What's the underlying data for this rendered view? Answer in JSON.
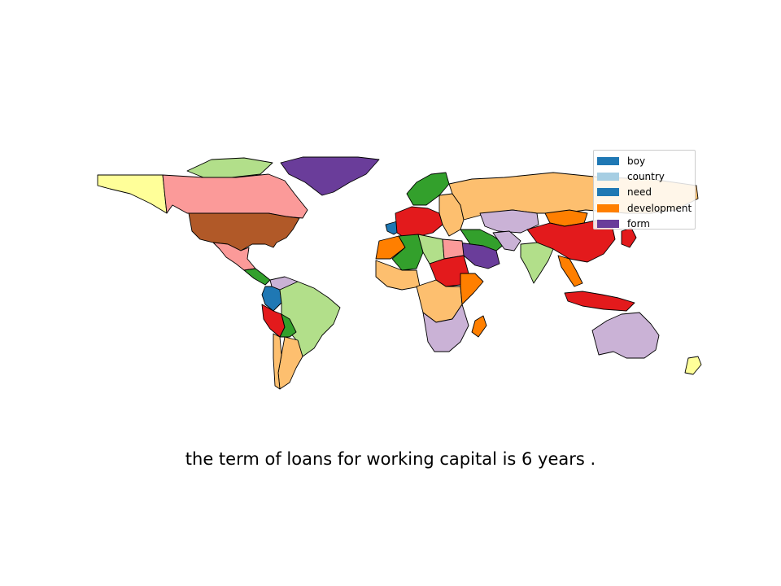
{
  "legend": {
    "items": [
      {
        "label": "boy",
        "color": "#1f78b4"
      },
      {
        "label": "country",
        "color": "#a6cee3"
      },
      {
        "label": "need",
        "color": "#1f78b4"
      },
      {
        "label": "development",
        "color": "#ff7f00"
      },
      {
        "label": "form",
        "color": "#6a3d9a"
      }
    ]
  },
  "caption": "the term of loans for working capital is 6 years .",
  "palette": {
    "light_blue": "#a6cee3",
    "blue": "#1f78b4",
    "light_green": "#b2df8a",
    "green": "#33a02c",
    "pink": "#fb9a99",
    "red": "#e31a1c",
    "light_orange": "#fdbf6f",
    "orange": "#ff7f00",
    "lavender": "#cab2d6",
    "purple": "#6a3d9a",
    "yellow": "#ffff99",
    "brown": "#b15928",
    "cream": "#ffeedd"
  },
  "map": {
    "regions": [
      {
        "name": "alaska",
        "color": "#ffff99"
      },
      {
        "name": "canada",
        "color": "#fb9a99"
      },
      {
        "name": "greenland",
        "color": "#6a3d9a"
      },
      {
        "name": "arctic-islands",
        "color": "#b2df8a"
      },
      {
        "name": "usa",
        "color": "#b15928"
      },
      {
        "name": "mexico",
        "color": "#fb9a99"
      },
      {
        "name": "central-america",
        "color": "#33a02c"
      },
      {
        "name": "colombia",
        "color": "#1f78b4"
      },
      {
        "name": "venezuela",
        "color": "#cab2d6"
      },
      {
        "name": "peru",
        "color": "#e31a1c"
      },
      {
        "name": "brazil",
        "color": "#b2df8a"
      },
      {
        "name": "bolivia",
        "color": "#33a02c"
      },
      {
        "name": "argentina",
        "color": "#fdbf6f"
      },
      {
        "name": "chile",
        "color": "#fdbf6f"
      },
      {
        "name": "iceland",
        "color": "#1f78b4"
      },
      {
        "name": "scandinavia",
        "color": "#33a02c"
      },
      {
        "name": "western-europe",
        "color": "#e31a1c"
      },
      {
        "name": "eastern-europe",
        "color": "#fdbf6f"
      },
      {
        "name": "russia",
        "color": "#fdbf6f"
      },
      {
        "name": "kazakhstan",
        "color": "#cab2d6"
      },
      {
        "name": "mongolia",
        "color": "#ff7f00"
      },
      {
        "name": "china",
        "color": "#e31a1c"
      },
      {
        "name": "india",
        "color": "#b2df8a"
      },
      {
        "name": "middle-east",
        "color": "#33a02c"
      },
      {
        "name": "saudi-arabia",
        "color": "#6a3d9a"
      },
      {
        "name": "iran",
        "color": "#cab2d6"
      },
      {
        "name": "north-africa-west",
        "color": "#ff7f00"
      },
      {
        "name": "algeria",
        "color": "#33a02c"
      },
      {
        "name": "libya",
        "color": "#b2df8a"
      },
      {
        "name": "egypt",
        "color": "#fb9a99"
      },
      {
        "name": "sudan",
        "color": "#e31a1c"
      },
      {
        "name": "west-africa",
        "color": "#fdbf6f"
      },
      {
        "name": "central-africa",
        "color": "#fdbf6f"
      },
      {
        "name": "east-africa",
        "color": "#ff7f00"
      },
      {
        "name": "southern-africa",
        "color": "#cab2d6"
      },
      {
        "name": "madagascar",
        "color": "#ff7f00"
      },
      {
        "name": "southeast-asia",
        "color": "#ff7f00"
      },
      {
        "name": "indonesia",
        "color": "#e31a1c"
      },
      {
        "name": "japan",
        "color": "#e31a1c"
      },
      {
        "name": "australia",
        "color": "#cab2d6"
      },
      {
        "name": "new-zealand",
        "color": "#ffff99"
      }
    ]
  }
}
